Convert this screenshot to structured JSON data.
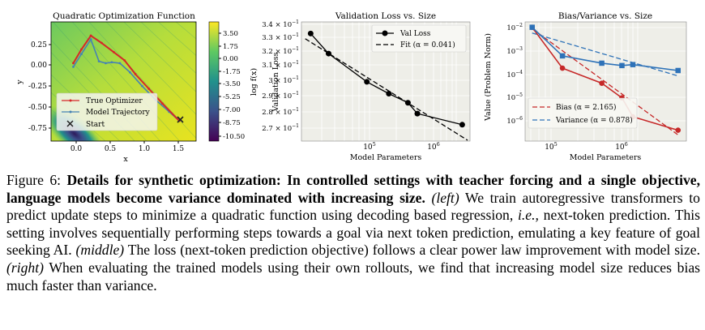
{
  "figure": {
    "panels": {
      "left": {
        "title": "Quadratic Optimization Function",
        "xlabel": "x",
        "ylabel": "y",
        "x_ticks": [
          "0.0",
          "0.5",
          "1.0",
          "1.5"
        ],
        "y_ticks": [
          "0.25",
          "0.00",
          "-0.25",
          "-0.50",
          "-0.75"
        ],
        "colorbar_label": "log f(x)",
        "colorbar_ticks": [
          "3.50",
          "1.75",
          "0.00",
          "-1.75",
          "-3.50",
          "-5.25",
          "-7.00",
          "-8.75",
          "-10.50"
        ],
        "legend": [
          "True Optimizer",
          "Model Trajectory",
          "Start"
        ],
        "colors": {
          "true_optimizer": "#d62728",
          "model_trajectory": "#4682b4",
          "start": "#222222"
        }
      },
      "middle": {
        "title": "Validation Loss vs. Size",
        "xlabel": "Model Parameters",
        "ylabel": "Validation Loss",
        "x_ticks": [
          "10^5",
          "10^6"
        ],
        "y_ticks": [
          "3.4 × 10^−1",
          "3.3 × 10^−1",
          "3.2 × 10^−1",
          "3.1 × 10^−1",
          "3 × 10^−1",
          "2.9 × 10^−1",
          "2.8 × 10^−1",
          "2.7 × 10^−1"
        ],
        "legend": [
          "Val Loss",
          "Fit (α = 0.041)"
        ]
      },
      "right": {
        "title": "Bias/Variance vs. Size",
        "xlabel": "Model Parameters",
        "ylabel": "Value (Problem Norm)",
        "x_ticks": [
          "10^5",
          "10^6"
        ],
        "y_ticks": [
          "10^−2",
          "10^−3",
          "10^−4",
          "10^−5",
          "10^−6"
        ],
        "legend": [
          "Bias (α = 2.165)",
          "Variance (α = 0.878)"
        ],
        "colors": {
          "bias": "#c62828",
          "variance": "#2e72b8"
        }
      }
    }
  },
  "chart_data": [
    {
      "type": "line",
      "title": "Quadratic Optimization Function",
      "xlabel": "x",
      "ylabel": "y",
      "xlim": [
        -0.35,
        1.8
      ],
      "ylim": [
        -0.85,
        0.45
      ],
      "colorbar": {
        "label": "log f(x)",
        "range": [
          -10.5,
          3.5
        ]
      },
      "series": [
        {
          "name": "True Optimizer",
          "x": [
            -0.02,
            0.1,
            0.24,
            0.4,
            0.58,
            0.74,
            0.9,
            1.1,
            1.3,
            1.55
          ],
          "y": [
            0.0,
            0.15,
            0.3,
            0.22,
            0.12,
            0.03,
            -0.12,
            -0.28,
            -0.44,
            -0.63
          ]
        },
        {
          "name": "Model Trajectory",
          "x": [
            -0.02,
            0.1,
            0.24,
            0.36,
            0.46,
            0.55,
            0.67,
            0.82,
            1.0,
            1.2,
            1.4,
            1.55
          ],
          "y": [
            -0.04,
            0.1,
            0.26,
            0.02,
            0.0,
            0.01,
            0.0,
            -0.1,
            -0.25,
            -0.4,
            -0.53,
            -0.63
          ]
        }
      ],
      "start": {
        "label": "Start",
        "x": 1.55,
        "y": -0.63
      }
    },
    {
      "type": "line",
      "title": "Validation Loss vs. Size",
      "xlabel": "Model Parameters",
      "ylabel": "Validation Loss",
      "xscale": "log",
      "yscale": "log",
      "xlim": [
        22000,
        6500000
      ],
      "ylim": [
        0.265,
        0.347
      ],
      "series": [
        {
          "name": "Val Loss",
          "x": [
            30000,
            55000,
            200000,
            420000,
            800000,
            1100000,
            5000000
          ],
          "y": [
            0.338,
            0.323,
            0.303,
            0.295,
            0.289,
            0.282,
            0.275
          ]
        },
        {
          "name": "Fit (α = 0.041)",
          "x": [
            25000,
            6000000
          ],
          "y": [
            0.334,
            0.2655
          ]
        }
      ],
      "legend": [
        "Val Loss",
        "Fit (α = 0.041)"
      ]
    },
    {
      "type": "line",
      "title": "Bias/Variance vs. Size",
      "xlabel": "Model Parameters",
      "ylabel": "Value (Problem Norm)",
      "xscale": "log",
      "yscale": "log",
      "xlim": [
        40000,
        6500000
      ],
      "ylim": [
        2.5e-07,
        0.02
      ],
      "series": [
        {
          "name": "Bias",
          "x": [
            50000,
            130000,
            450000,
            850000,
            1200000,
            5000000
          ],
          "y": [
            0.012,
            0.00025,
            6e-05,
            1.5e-05,
            2.5e-06,
            7e-07
          ]
        },
        {
          "name": "Bias (α = 2.165) fit",
          "x": [
            50000,
            5000000
          ],
          "y": [
            0.0105,
            4.5e-07
          ]
        },
        {
          "name": "Variance",
          "x": [
            50000,
            130000,
            450000,
            850000,
            1200000,
            5000000
          ],
          "y": [
            0.012,
            0.0008,
            0.0004,
            0.00032,
            0.00035,
            0.0002
          ]
        },
        {
          "name": "Variance (α = 0.878) fit",
          "x": [
            50000,
            5000000
          ],
          "y": [
            0.007,
            0.00012
          ]
        }
      ],
      "legend": [
        "Bias (α = 2.165)",
        "Variance (α = 0.878)"
      ]
    }
  ],
  "caption": {
    "figure_label": "Figure 6:",
    "bold_title": "Details for synthetic optimization: In controlled settings with teacher forcing and a single objective, language models become variance dominated with increasing size.",
    "left_tag": "(left)",
    "text_1": "We train autoregressive transformers to predict update steps to minimize a quadratic function using decoding based regression,",
    "ie": "i.e.,",
    "text_2": "next-token prediction. This setting involves sequentially performing steps towards a goal via next token prediction, emulating a key feature of goal seeking AI.",
    "middle_tag": "(middle)",
    "text_3": "The loss (next-token prediction objective) follows a clear power law improvement with model size.",
    "right_tag": "(right)",
    "text_4": "When evaluating the trained models using their own rollouts, we find that increasing model size reduces bias much faster than variance."
  }
}
